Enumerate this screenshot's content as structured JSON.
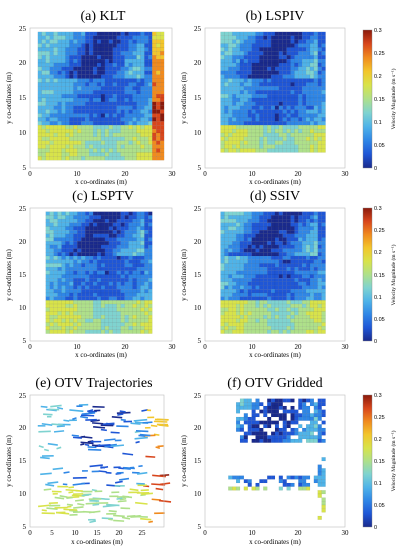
{
  "chart_data": [
    {
      "type": "heatmap",
      "title": "(a) KLT",
      "xlabel": "x co-ordinates (m)",
      "ylabel": "y co-ordinates (m)",
      "xlim": [
        0,
        30
      ],
      "ylim": [
        5,
        25
      ],
      "xticks": [
        "0",
        "10",
        "20",
        "30"
      ],
      "yticks": [
        "5",
        "10",
        "15",
        "20",
        "25"
      ],
      "style": "dense",
      "grid": true
    },
    {
      "type": "heatmap",
      "title": "(b) LSPIV",
      "xlabel": "x co-ordinates (m)",
      "ylabel": "y co-ordinates (m)",
      "xlim": [
        0,
        30
      ],
      "ylim": [
        5,
        25
      ],
      "xticks": [
        "0",
        "10",
        "20",
        "30"
      ],
      "yticks": [
        "5",
        "10",
        "15",
        "20",
        "25"
      ],
      "style": "dense",
      "grid": true,
      "colorbar": {
        "label": "Velocity Magnitude (m s⁻¹)",
        "range": [
          0,
          0.3
        ],
        "ticks": [
          "0",
          "0.05",
          "0.1",
          "0.15",
          "0.2",
          "0.25",
          "0.3"
        ]
      }
    },
    {
      "type": "heatmap",
      "title": "(c) LSPTV",
      "xlabel": "x co-ordinates (m)",
      "ylabel": "y co-ordinates (m)",
      "xlim": [
        0,
        30
      ],
      "ylim": [
        5,
        25
      ],
      "xticks": [
        "0",
        "10",
        "20",
        "30"
      ],
      "yticks": [
        "5",
        "10",
        "15",
        "20",
        "25"
      ],
      "style": "dense",
      "grid": true
    },
    {
      "type": "heatmap",
      "title": "(d) SSIV",
      "xlabel": "x co-ordinates (m)",
      "ylabel": "y co-ordinates (m)",
      "xlim": [
        0,
        30
      ],
      "ylim": [
        5,
        25
      ],
      "xticks": [
        "0",
        "10",
        "20",
        "30"
      ],
      "yticks": [
        "5",
        "10",
        "15",
        "20",
        "25"
      ],
      "style": "dense",
      "grid": true,
      "colorbar": {
        "label": "Velocity Magnitude (m s⁻¹)",
        "range": [
          0,
          0.3
        ],
        "ticks": [
          "0",
          "0.05",
          "0.1",
          "0.15",
          "0.2",
          "0.25",
          "0.3"
        ]
      }
    },
    {
      "type": "heatmap",
      "title": "(e) OTV Trajectories",
      "xlabel": "x co-ordinates (m)",
      "ylabel": "y co-ordinates (m)",
      "xlim": [
        0,
        30
      ],
      "ylim": [
        5,
        25
      ],
      "xticks": [
        "0",
        "5",
        "10",
        "15",
        "20",
        "25"
      ],
      "yticks": [
        "5",
        "10",
        "15",
        "20",
        "25"
      ],
      "style": "trajectories",
      "grid": false
    },
    {
      "type": "heatmap",
      "title": "(f) OTV Gridded",
      "xlabel": "x co-ordinates (m)",
      "ylabel": "y co-ordinates (m)",
      "xlim": [
        0,
        30
      ],
      "ylim": [
        5,
        25
      ],
      "xticks": [
        "0",
        "10",
        "20",
        "30"
      ],
      "yticks": [
        "5",
        "10",
        "15",
        "20",
        "25"
      ],
      "style": "sparse",
      "grid": true,
      "colorbar": {
        "label": "Velocity Magnitude (m s⁻¹)",
        "range": [
          0,
          0.3
        ],
        "ticks": [
          "0",
          "0.05",
          "0.1",
          "0.15",
          "0.2",
          "0.25",
          "0.3"
        ]
      }
    }
  ],
  "colormap": [
    "#1a2a8c",
    "#1f56d6",
    "#2f86e6",
    "#4fb3e8",
    "#7fd3d0",
    "#aee08a",
    "#d8e34a",
    "#f2c62c",
    "#f08a1e",
    "#d8461c",
    "#8a1a0c"
  ]
}
